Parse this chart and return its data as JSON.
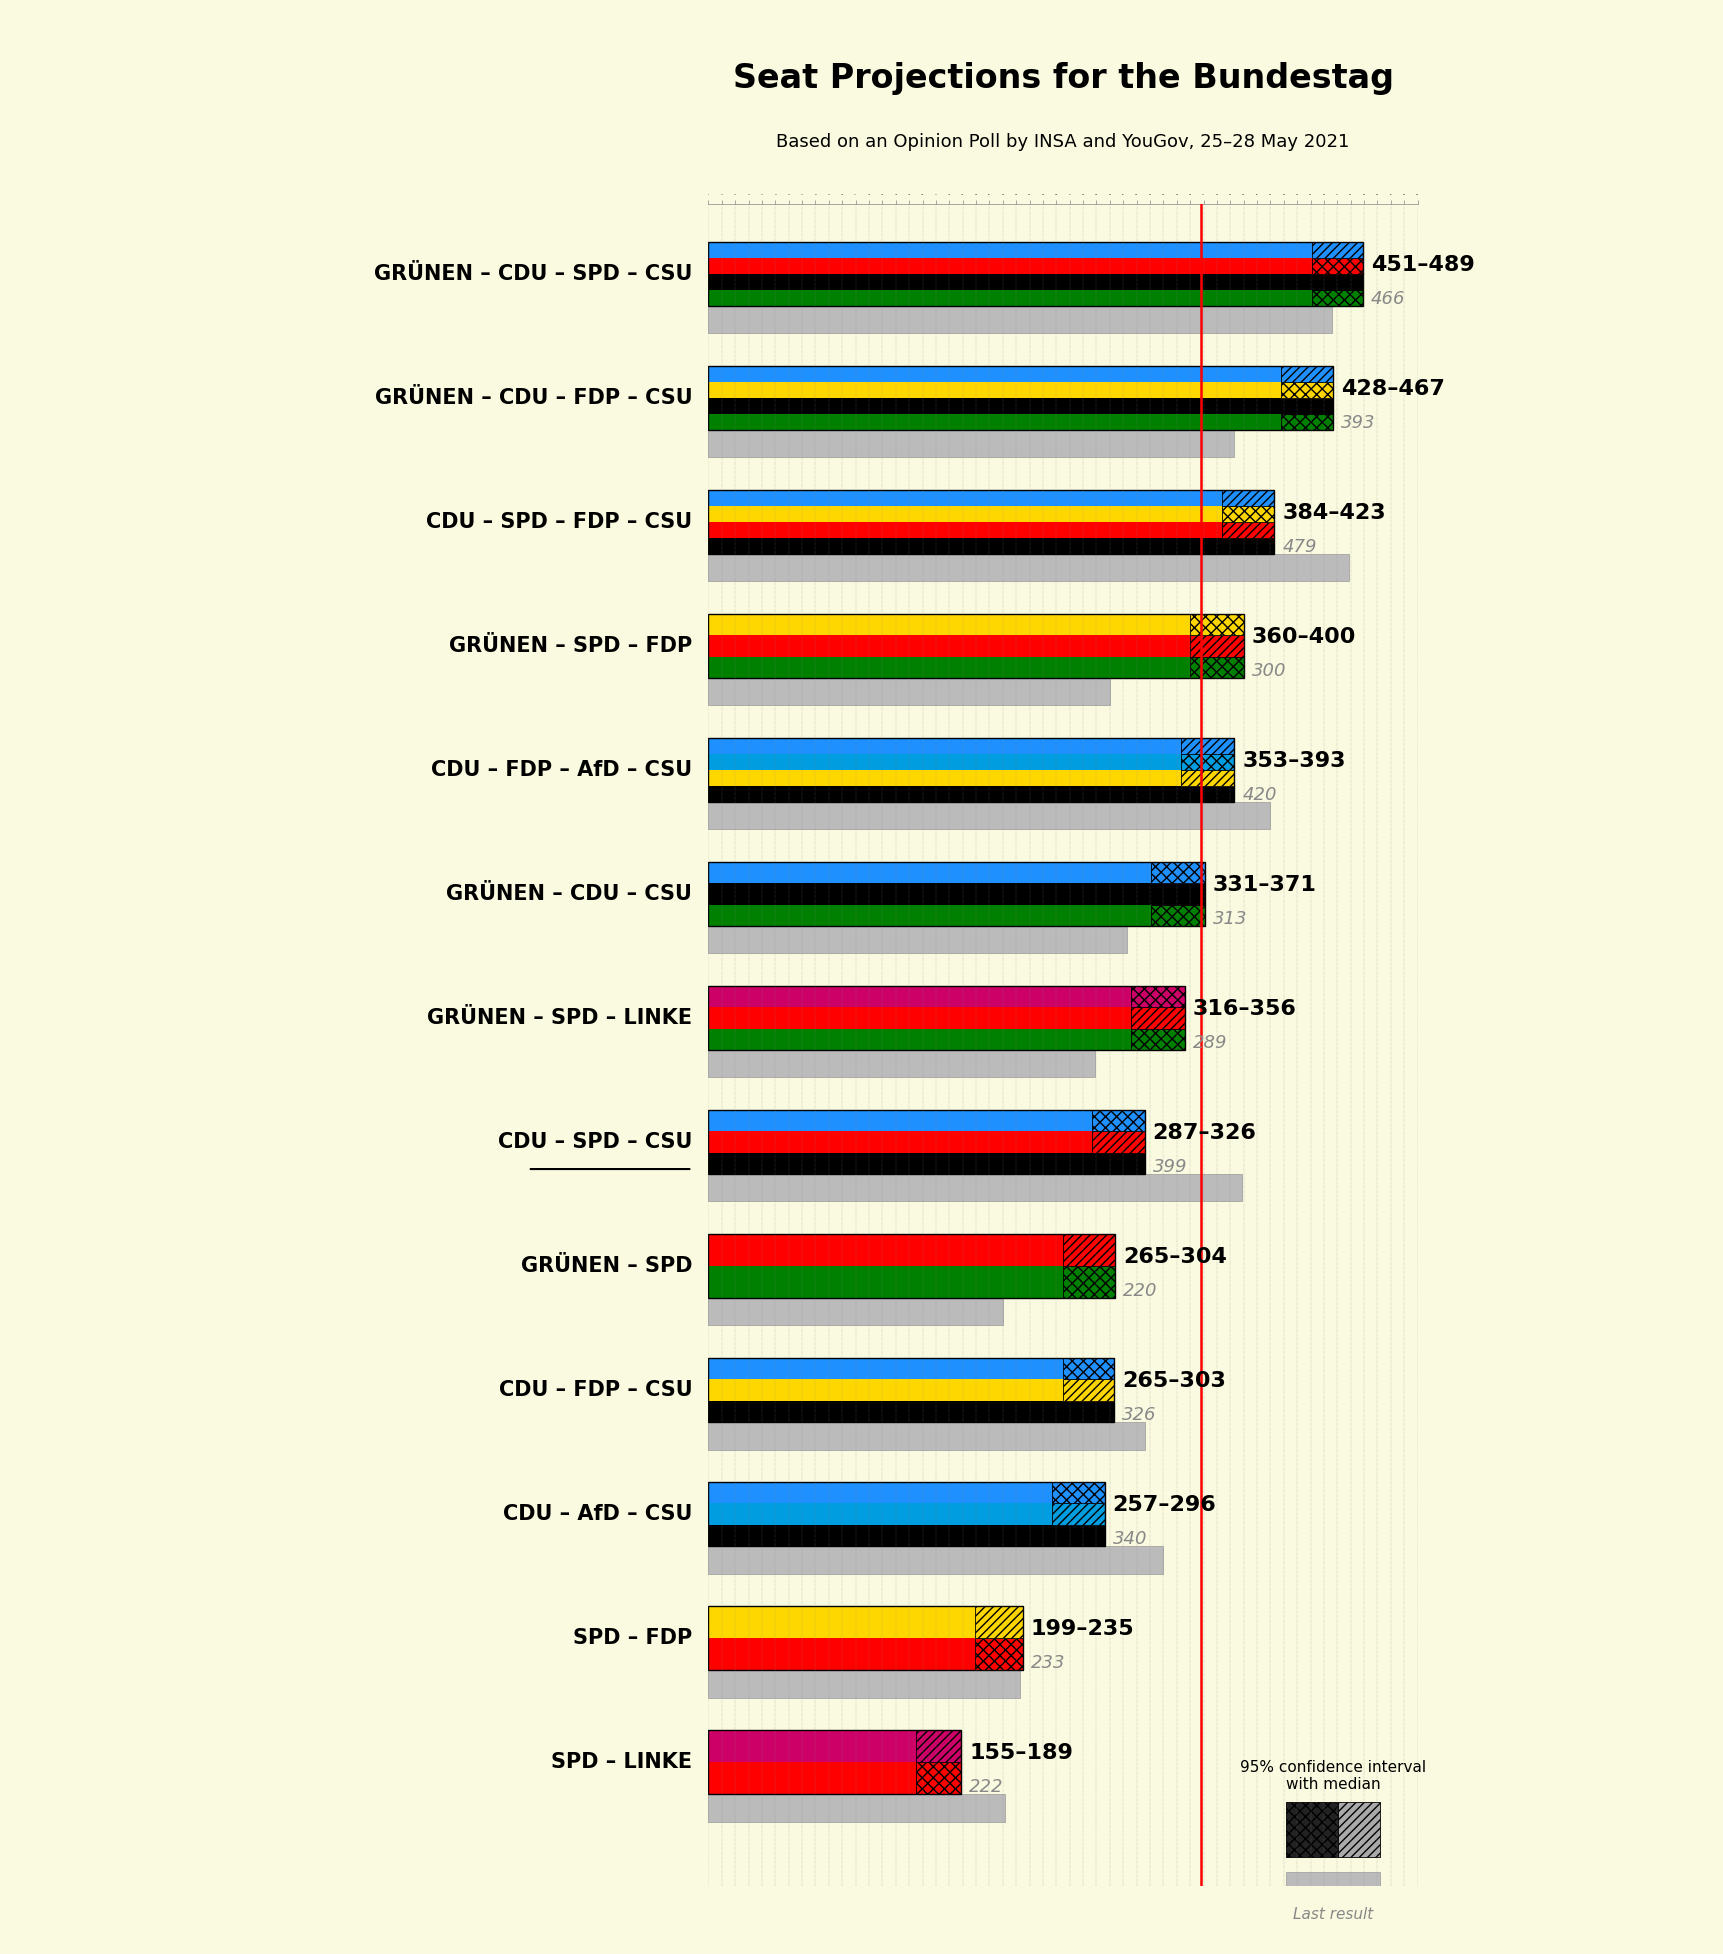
{
  "title": "Seat Projections for the Bundestag",
  "subtitle": "Based on an Opinion Poll by INSA and YouGov, 25–28 May 2021",
  "background_color": "#FAFAE0",
  "majority_line": 368,
  "x_max": 530,
  "coalitions": [
    {
      "label": "GRÜNEN – CDU – SPD – CSU",
      "underline": false,
      "low": 451,
      "high": 489,
      "last_result": 466,
      "colors": [
        "#008000",
        "#000000",
        "#FF0000",
        "#1E90FF"
      ]
    },
    {
      "label": "GRÜNEN – CDU – FDP – CSU",
      "underline": false,
      "low": 428,
      "high": 467,
      "last_result": 393,
      "colors": [
        "#008000",
        "#000000",
        "#FFD700",
        "#1E90FF"
      ]
    },
    {
      "label": "CDU – SPD – FDP – CSU",
      "underline": false,
      "low": 384,
      "high": 423,
      "last_result": 479,
      "colors": [
        "#000000",
        "#FF0000",
        "#FFD700",
        "#1E90FF"
      ]
    },
    {
      "label": "GRÜNEN – SPD – FDP",
      "underline": false,
      "low": 360,
      "high": 400,
      "last_result": 300,
      "colors": [
        "#008000",
        "#FF0000",
        "#FFD700"
      ]
    },
    {
      "label": "CDU – FDP – AfD – CSU",
      "underline": false,
      "low": 353,
      "high": 393,
      "last_result": 420,
      "colors": [
        "#000000",
        "#FFD700",
        "#009DE0",
        "#1E90FF"
      ]
    },
    {
      "label": "GRÜNEN – CDU – CSU",
      "underline": false,
      "low": 331,
      "high": 371,
      "last_result": 313,
      "colors": [
        "#008000",
        "#000000",
        "#1E90FF"
      ]
    },
    {
      "label": "GRÜNEN – SPD – LINKE",
      "underline": false,
      "low": 316,
      "high": 356,
      "last_result": 289,
      "colors": [
        "#008000",
        "#FF0000",
        "#CC0066"
      ]
    },
    {
      "label": "CDU – SPD – CSU",
      "underline": true,
      "low": 287,
      "high": 326,
      "last_result": 399,
      "colors": [
        "#000000",
        "#FF0000",
        "#1E90FF"
      ]
    },
    {
      "label": "GRÜNEN – SPD",
      "underline": false,
      "low": 265,
      "high": 304,
      "last_result": 220,
      "colors": [
        "#008000",
        "#FF0000"
      ]
    },
    {
      "label": "CDU – FDP – CSU",
      "underline": false,
      "low": 265,
      "high": 303,
      "last_result": 326,
      "colors": [
        "#000000",
        "#FFD700",
        "#1E90FF"
      ]
    },
    {
      "label": "CDU – AfD – CSU",
      "underline": false,
      "low": 257,
      "high": 296,
      "last_result": 340,
      "colors": [
        "#000000",
        "#009DE0",
        "#1E90FF"
      ]
    },
    {
      "label": "SPD – FDP",
      "underline": false,
      "low": 199,
      "high": 235,
      "last_result": 233,
      "colors": [
        "#FF0000",
        "#FFD700"
      ]
    },
    {
      "label": "SPD – LINKE",
      "underline": false,
      "low": 155,
      "high": 189,
      "last_result": 222,
      "colors": [
        "#FF0000",
        "#CC0066"
      ]
    }
  ]
}
